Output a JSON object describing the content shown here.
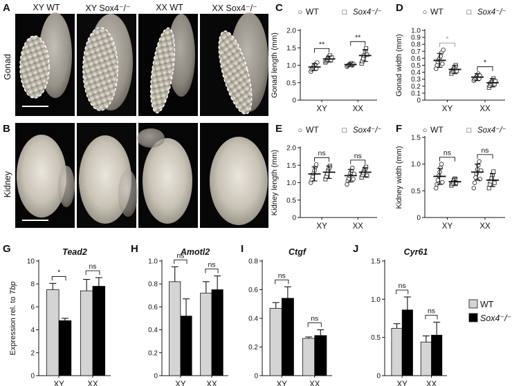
{
  "panels": {
    "A": {
      "label": "A",
      "row_label": "Gonad",
      "columns": [
        "XY WT",
        "XY Sox4⁻/⁻",
        "XX WT",
        "XX Sox4⁻/⁻"
      ]
    },
    "B": {
      "label": "B",
      "row_label": "Kidney"
    }
  },
  "legend_symbols": {
    "wt": "○",
    "ko": "□"
  },
  "colors": {
    "wt_bar": "#d4d4d4",
    "ko_bar": "#000000",
    "axis": "#111111",
    "sig_line": "#111111",
    "sig_line_light": "#9a9a9a"
  },
  "chart_data": [
    {
      "id": "C",
      "panel_label": "C",
      "type": "scatter",
      "legend": [
        "WT",
        "Sox4⁻/⁻"
      ],
      "ylabel": "Gonad length (mm)",
      "ylim": [
        0,
        2.0
      ],
      "yticks": [
        "0",
        "0.5",
        "1.0",
        "1.5",
        "2.0"
      ],
      "ytick_values": [
        0,
        0.5,
        1.0,
        1.5,
        2.0
      ],
      "categories": [
        "XY",
        "XX"
      ],
      "series": [
        {
          "name": "WT",
          "marker": "circle",
          "groups": [
            {
              "category": "XY",
              "mean": 0.95,
              "sd": 0.1,
              "points": [
                0.82,
                0.88,
                0.92,
                0.96,
                1.0,
                1.03,
                0.9,
                1.08
              ]
            },
            {
              "category": "XX",
              "mean": 1.02,
              "sd": 0.05,
              "points": [
                0.96,
                0.99,
                1.01,
                1.03,
                1.05,
                1.06,
                1.0,
                1.04
              ]
            }
          ]
        },
        {
          "name": "Sox4⁻/⁻",
          "marker": "square",
          "groups": [
            {
              "category": "XY",
              "mean": 1.18,
              "sd": 0.08,
              "points": [
                1.08,
                1.12,
                1.16,
                1.2,
                1.24,
                1.28,
                1.14,
                1.22
              ]
            },
            {
              "category": "XX",
              "mean": 1.28,
              "sd": 0.17,
              "points": [
                1.05,
                1.12,
                1.2,
                1.28,
                1.38,
                1.48,
                1.3
              ]
            }
          ]
        }
      ],
      "significance": [
        {
          "category": "XY",
          "text": "**"
        },
        {
          "category": "XX",
          "text": "**"
        }
      ]
    },
    {
      "id": "D",
      "panel_label": "D",
      "type": "scatter",
      "legend": [
        "WT",
        "Sox4⁻/⁻"
      ],
      "ylabel": "Gonad width (mm)",
      "ylim": [
        0,
        1.0
      ],
      "yticks": [
        "0",
        "0.1",
        "0.2",
        "0.3",
        "0.4",
        "0.5",
        "0.6",
        "0.7",
        "0.8",
        "0.9",
        "1.0"
      ],
      "ytick_values": [
        0,
        0.1,
        0.2,
        0.3,
        0.4,
        0.5,
        0.6,
        0.7,
        0.8,
        0.9,
        1.0
      ],
      "categories": [
        "XY",
        "XX"
      ],
      "series": [
        {
          "name": "WT",
          "marker": "circle",
          "groups": [
            {
              "category": "XY",
              "mean": 0.57,
              "sd": 0.1,
              "points": [
                0.45,
                0.5,
                0.55,
                0.58,
                0.6,
                0.63,
                0.68,
                0.52,
                0.72
              ]
            },
            {
              "category": "XX",
              "mean": 0.33,
              "sd": 0.05,
              "points": [
                0.28,
                0.3,
                0.32,
                0.34,
                0.36,
                0.38,
                0.31,
                0.35
              ]
            }
          ]
        },
        {
          "name": "Sox4⁻/⁻",
          "marker": "square",
          "groups": [
            {
              "category": "XY",
              "mean": 0.44,
              "sd": 0.06,
              "points": [
                0.38,
                0.41,
                0.43,
                0.45,
                0.47,
                0.5,
                0.42
              ]
            },
            {
              "category": "XX",
              "mean": 0.25,
              "sd": 0.06,
              "points": [
                0.18,
                0.21,
                0.24,
                0.26,
                0.28,
                0.31,
                0.23,
                0.27
              ]
            }
          ]
        }
      ],
      "significance": [
        {
          "category": "XY",
          "text": "*",
          "light": true
        },
        {
          "category": "XX",
          "text": "*"
        }
      ]
    },
    {
      "id": "E",
      "panel_label": "E",
      "type": "scatter",
      "legend": [
        "WT",
        "Sox4⁻/⁻"
      ],
      "ylabel": "Kidney length (mm)",
      "ylim": [
        0,
        2.0
      ],
      "yticks": [
        "0",
        "0.5",
        "1.0",
        "1.5",
        "2.0"
      ],
      "ytick_values": [
        0,
        0.5,
        1.0,
        1.5,
        2.0
      ],
      "categories": [
        "XY",
        "XX"
      ],
      "series": [
        {
          "name": "WT",
          "marker": "circle",
          "groups": [
            {
              "category": "XY",
              "mean": 1.25,
              "sd": 0.2,
              "points": [
                1.0,
                1.08,
                1.18,
                1.26,
                1.35,
                1.45,
                1.52
              ]
            },
            {
              "category": "XX",
              "mean": 1.2,
              "sd": 0.18,
              "points": [
                0.95,
                1.05,
                1.12,
                1.2,
                1.28,
                1.35,
                1.42,
                1.1,
                1.25
              ]
            }
          ]
        },
        {
          "name": "Sox4⁻/⁻",
          "marker": "square",
          "groups": [
            {
              "category": "XY",
              "mean": 1.3,
              "sd": 0.18,
              "points": [
                1.1,
                1.18,
                1.26,
                1.34,
                1.42,
                1.48
              ]
            },
            {
              "category": "XX",
              "mean": 1.3,
              "sd": 0.13,
              "points": [
                1.15,
                1.22,
                1.28,
                1.34,
                1.4,
                1.45,
                1.2
              ]
            }
          ]
        }
      ],
      "significance": [
        {
          "category": "XY",
          "text": "ns"
        },
        {
          "category": "XX",
          "text": "ns"
        }
      ]
    },
    {
      "id": "F",
      "panel_label": "F",
      "type": "scatter",
      "legend": [
        "WT",
        "Sox4⁻/⁻"
      ],
      "ylabel": "Kidney width (mm)",
      "ylim": [
        0,
        1.5
      ],
      "yticks": [
        "0",
        "0.5",
        "1.0",
        "1.5"
      ],
      "ytick_values": [
        0,
        0.5,
        1.0,
        1.5
      ],
      "categories": [
        "XY",
        "XX"
      ],
      "series": [
        {
          "name": "WT",
          "marker": "circle",
          "groups": [
            {
              "category": "XY",
              "mean": 0.77,
              "sd": 0.15,
              "points": [
                0.55,
                0.62,
                0.7,
                0.78,
                0.85,
                0.93,
                1.0,
                0.66
              ]
            },
            {
              "category": "XX",
              "mean": 0.85,
              "sd": 0.15,
              "points": [
                0.55,
                0.65,
                0.75,
                0.82,
                0.9,
                0.98,
                1.05,
                0.72,
                0.88
              ]
            }
          ]
        },
        {
          "name": "Sox4⁻/⁻",
          "marker": "square",
          "groups": [
            {
              "category": "XY",
              "mean": 0.67,
              "sd": 0.07,
              "points": [
                0.6,
                0.63,
                0.66,
                0.7,
                0.73,
                0.65
              ]
            },
            {
              "category": "XX",
              "mean": 0.7,
              "sd": 0.12,
              "points": [
                0.55,
                0.62,
                0.68,
                0.74,
                0.8,
                0.86,
                0.65
              ]
            }
          ]
        }
      ],
      "significance": [
        {
          "category": "XY",
          "text": "ns"
        },
        {
          "category": "XX",
          "text": "ns"
        }
      ]
    },
    {
      "id": "G",
      "panel_label": "G",
      "type": "bar",
      "title": "Tead2",
      "ylabel": "Expression rel. to Tbp",
      "ylim": [
        0,
        10
      ],
      "yticks": [
        "0",
        "2",
        "4",
        "6",
        "8",
        "10"
      ],
      "ytick_values": [
        0,
        2,
        4,
        6,
        8,
        10
      ],
      "categories": [
        "XY",
        "XX"
      ],
      "series": [
        {
          "name": "WT",
          "values": [
            7.5,
            7.4
          ],
          "errors": [
            0.55,
            1.0
          ]
        },
        {
          "name": "Sox4⁻/⁻",
          "values": [
            4.8,
            7.8
          ],
          "errors": [
            0.2,
            0.75
          ]
        }
      ],
      "significance": [
        {
          "category": "XY",
          "text": "*"
        },
        {
          "category": "XX",
          "text": "ns"
        }
      ]
    },
    {
      "id": "H",
      "panel_label": "H",
      "type": "bar",
      "title": "Amotl2",
      "ylim": [
        0,
        1.0
      ],
      "yticks": [
        "0",
        "0.2",
        "0.4",
        "0.6",
        "0.8",
        "1.0"
      ],
      "ytick_values": [
        0,
        0.2,
        0.4,
        0.6,
        0.8,
        1.0
      ],
      "categories": [
        "XY",
        "XX"
      ],
      "series": [
        {
          "name": "WT",
          "values": [
            0.82,
            0.72
          ],
          "errors": [
            0.13,
            0.1
          ]
        },
        {
          "name": "Sox4⁻/⁻",
          "values": [
            0.52,
            0.75
          ],
          "errors": [
            0.15,
            0.12
          ]
        }
      ],
      "significance": [
        {
          "category": "XY",
          "text": "ns"
        },
        {
          "category": "XX",
          "text": "ns"
        }
      ]
    },
    {
      "id": "I",
      "panel_label": "I",
      "type": "bar",
      "title": "Ctgf",
      "ylim": [
        0,
        0.8
      ],
      "yticks": [
        "0",
        "0.2",
        "0.4",
        "0.6",
        "0.8"
      ],
      "ytick_values": [
        0,
        0.2,
        0.4,
        0.6,
        0.8
      ],
      "categories": [
        "XY",
        "XX"
      ],
      "series": [
        {
          "name": "WT",
          "values": [
            0.47,
            0.26
          ],
          "errors": [
            0.04,
            0.01
          ]
        },
        {
          "name": "Sox4⁻/⁻",
          "values": [
            0.54,
            0.28
          ],
          "errors": [
            0.08,
            0.04
          ]
        }
      ],
      "significance": [
        {
          "category": "XY",
          "text": "ns"
        },
        {
          "category": "XX",
          "text": "ns"
        }
      ]
    },
    {
      "id": "J",
      "panel_label": "J",
      "type": "bar",
      "title": "Cyr61",
      "ylim": [
        0,
        1.5
      ],
      "yticks": [
        "0",
        "0.5",
        "1.0",
        "1.5"
      ],
      "ytick_values": [
        0,
        0.5,
        1.0,
        1.5
      ],
      "categories": [
        "XY",
        "XX"
      ],
      "series": [
        {
          "name": "WT",
          "values": [
            0.62,
            0.44
          ],
          "errors": [
            0.06,
            0.08
          ]
        },
        {
          "name": "Sox4⁻/⁻",
          "values": [
            0.86,
            0.53
          ],
          "errors": [
            0.17,
            0.17
          ]
        }
      ],
      "significance": [
        {
          "category": "XY",
          "text": "ns"
        },
        {
          "category": "XX",
          "text": "ns"
        }
      ],
      "legend": [
        "WT",
        "Sox4⁻/⁻"
      ],
      "legend_placement": "right"
    }
  ]
}
